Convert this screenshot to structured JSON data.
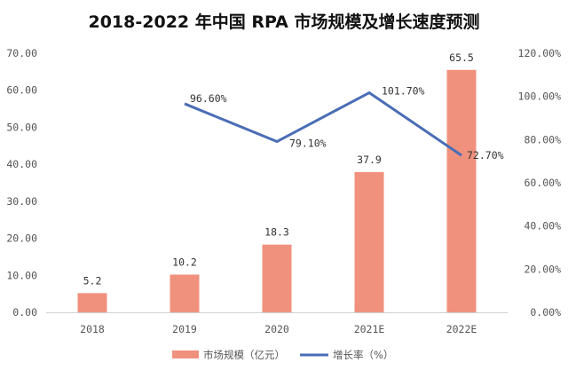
{
  "chart_data": {
    "type": "bar+line",
    "title": "2018-2022 年中国 RPA 市场规模及增长速度预测",
    "categories": [
      "2018",
      "2019",
      "2020",
      "2021E",
      "2022E"
    ],
    "series": [
      {
        "name": "市场规模（亿元）",
        "type": "bar",
        "axis": "left",
        "color": "#F0917E",
        "values": [
          5.2,
          10.2,
          18.3,
          37.9,
          65.5
        ],
        "labels": [
          "5.2",
          "10.2",
          "18.3",
          "37.9",
          "65.5"
        ]
      },
      {
        "name": "增长率（%）",
        "type": "line",
        "axis": "right",
        "color": "#4A6DB5",
        "values": [
          null,
          96.6,
          79.1,
          101.7,
          72.7
        ],
        "labels": [
          "",
          "96.60%",
          "79.10%",
          "101.70%",
          "72.70%"
        ]
      }
    ],
    "left_axis": {
      "ylim": [
        0,
        70
      ],
      "ticks": [
        "0.00",
        "10.00",
        "20.00",
        "30.00",
        "40.00",
        "50.00",
        "60.00",
        "70.00"
      ]
    },
    "right_axis": {
      "ylim": [
        0,
        120
      ],
      "ticks": [
        "0.00%",
        "20.00%",
        "40.00%",
        "60.00%",
        "80.00%",
        "100.00%",
        "120.00%"
      ]
    },
    "grid": false,
    "legend": "bottom"
  }
}
